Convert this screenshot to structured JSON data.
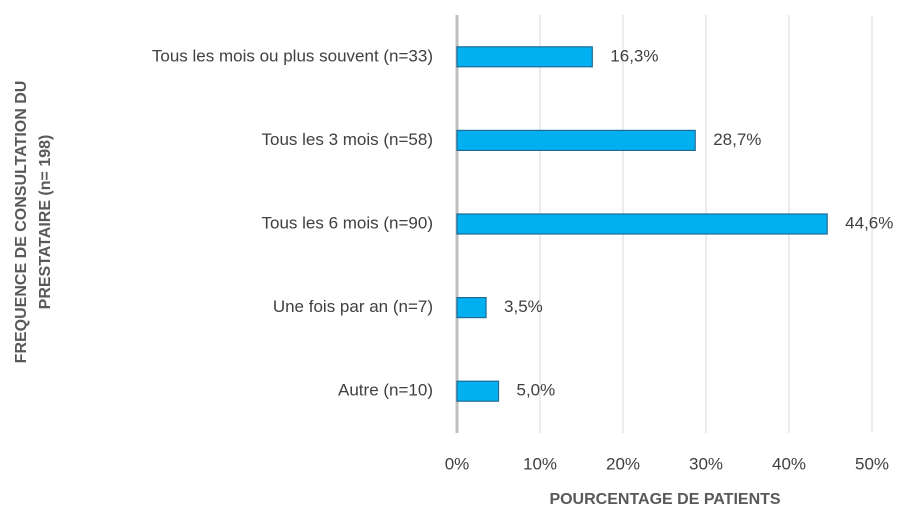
{
  "chart_data": {
    "type": "bar",
    "orientation": "horizontal",
    "categories": [
      "Tous les mois ou plus souvent (n=33)",
      "Tous les 3 mois (n=58)",
      "Tous les 6 mois (n=90)",
      "Une fois par an  (n=7)",
      "Autre (n=10)"
    ],
    "values": [
      16.3,
      28.7,
      44.6,
      3.5,
      5.0
    ],
    "value_labels": [
      "16,3%",
      "28,7%",
      "44,6%",
      "3,5%",
      "5,0%"
    ],
    "color": "#00b0f0",
    "xlim": [
      0,
      50
    ],
    "xticks": [
      {
        "value": 0,
        "label": "0%"
      },
      {
        "value": 10,
        "label": "10%"
      },
      {
        "value": 20,
        "label": "20%"
      },
      {
        "value": 30,
        "label": "30%"
      },
      {
        "value": 40,
        "label": "40%"
      },
      {
        "value": 50,
        "label": "50%"
      }
    ],
    "x_label": "POURCENTAGE DE PATIENTS",
    "y_label": [
      "FREQUENCE DE CONSULTATION DU",
      "PRESTATAIRE (n= 198)"
    ],
    "grid": true
  }
}
